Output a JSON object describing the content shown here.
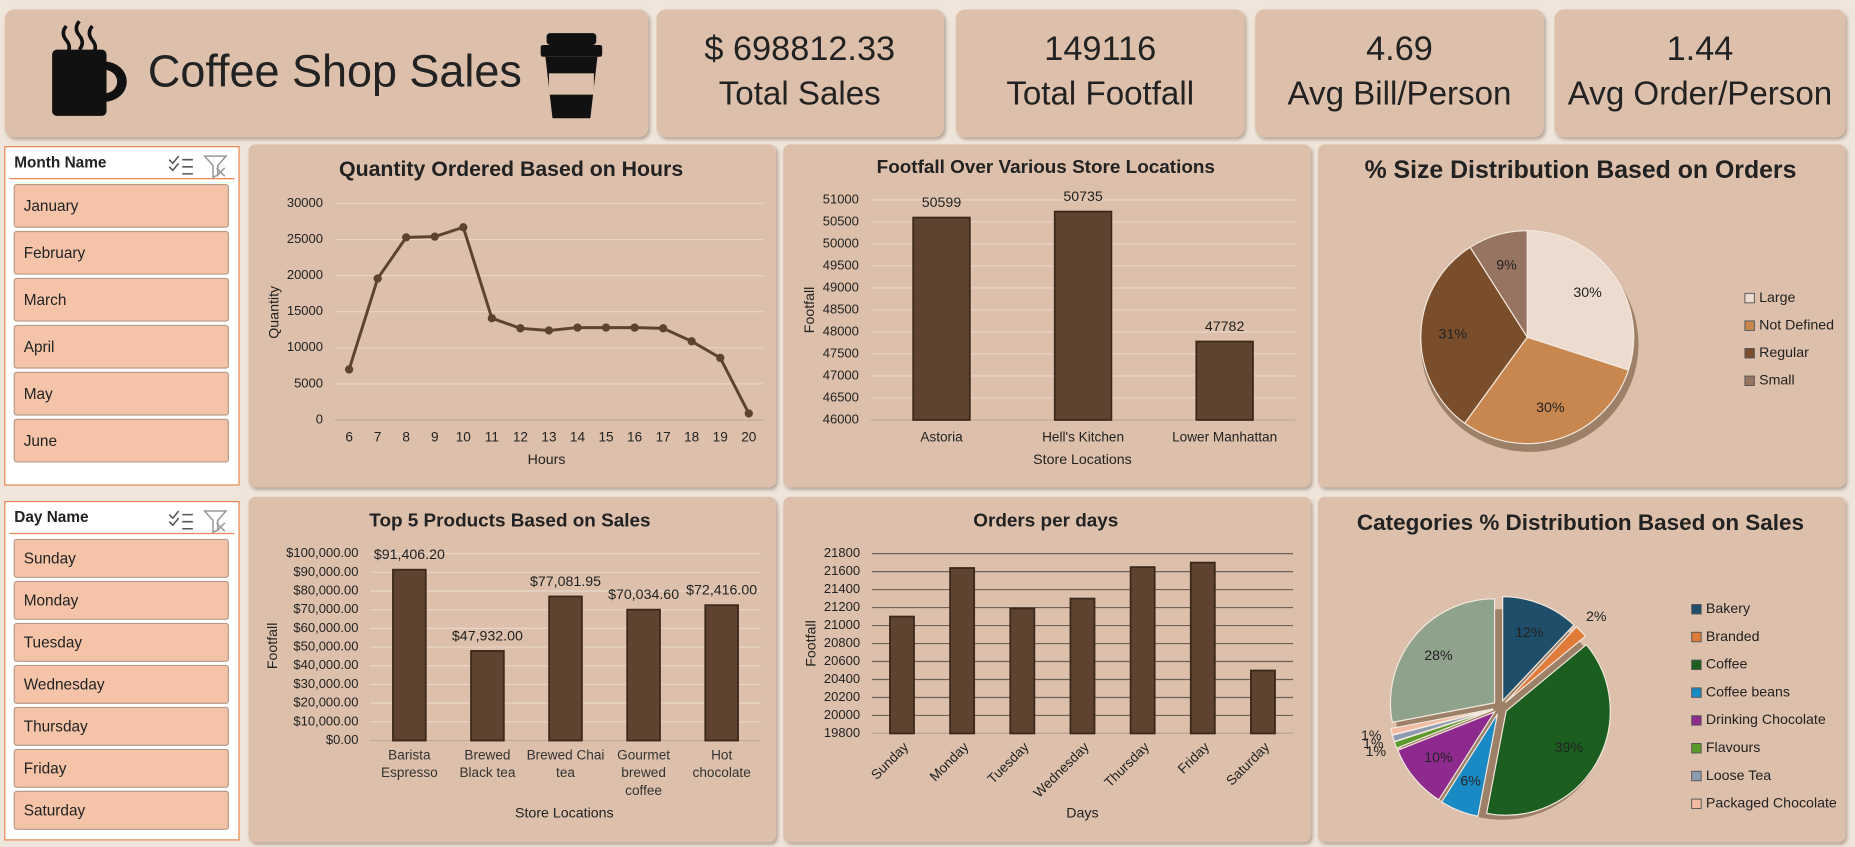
{
  "header": {
    "title": "Coffee Shop Sales"
  },
  "kpis": [
    {
      "value": "$ 698812.33",
      "label": "Total Sales"
    },
    {
      "value": "149116",
      "label": "Total Footfall"
    },
    {
      "value": "4.69",
      "label": "Avg Bill/Person"
    },
    {
      "value": "1.44",
      "label": "Avg Order/Person"
    }
  ],
  "slicers": [
    {
      "title": "Month Name",
      "items": [
        "January",
        "February",
        "March",
        "April",
        "May",
        "June"
      ]
    },
    {
      "title": "Day Name",
      "items": [
        "Sunday",
        "Monday",
        "Tuesday",
        "Wednesday",
        "Thursday",
        "Friday",
        "Saturday"
      ]
    }
  ],
  "chart_data": [
    {
      "type": "line",
      "title": "Quantity Ordered Based on Hours",
      "x_label": "Hours",
      "y_label": "Quantity",
      "categories": [
        "6",
        "7",
        "8",
        "9",
        "10",
        "11",
        "12",
        "13",
        "14",
        "15",
        "16",
        "17",
        "18",
        "19",
        "20"
      ],
      "values": [
        7000,
        19600,
        25300,
        25400,
        26700,
        14100,
        12700,
        12400,
        12800,
        12800,
        12800,
        12700,
        10900,
        8600,
        900
      ],
      "color": "#5e4330",
      "ylim": [
        0,
        30000
      ],
      "yticks": [
        0,
        5000,
        10000,
        15000,
        20000,
        25000,
        30000
      ],
      "grid": true,
      "grid_color": "#e9d6c8"
    },
    {
      "type": "bar",
      "title": "Footfall Over Various Store Locations",
      "x_label": "Store Locations",
      "y_label": "Footfall",
      "categories": [
        "Astoria",
        "Hell's Kitchen",
        "Lower Manhattan"
      ],
      "values": [
        50599,
        50735,
        47782
      ],
      "color": "#5e4330",
      "ylim": [
        46000,
        51000
      ],
      "yticks": [
        46000,
        46500,
        47000,
        47500,
        48000,
        48500,
        49000,
        49500,
        50000,
        50500,
        51000
      ],
      "grid": true,
      "grid_color": "#e9d6c8"
    },
    {
      "type": "pie",
      "title": "% Size Distribution Based on Orders",
      "categories": [
        "Large",
        "Not Defined",
        "Regular",
        "Small"
      ],
      "values": [
        30,
        30,
        31,
        9
      ],
      "value_labels": [
        "30%",
        "30%",
        "31%",
        "9%"
      ],
      "colors": [
        "#ecdccf",
        "#c8874e",
        "#7b4e2b",
        "#977461"
      ],
      "legend": "right"
    },
    {
      "type": "bar",
      "title": "Top 5 Products Based on Sales",
      "x_label": "Store Locations",
      "y_label": "Footfall",
      "categories": [
        "Barista Espresso",
        "Brewed Black tea",
        "Brewed Chai tea",
        "Gourmet brewed coffee",
        "Hot chocolate"
      ],
      "values": [
        91406.2,
        47932.0,
        77081.95,
        70034.6,
        72416.0
      ],
      "value_labels": [
        "$91,406.20",
        "$47,932.00",
        "$77,081.95",
        "$70,034.60",
        "$72,416.00"
      ],
      "color": "#5e4330",
      "ylim": [
        0,
        100000
      ],
      "yticks": [
        {
          "value": 0,
          "label": "$0.00"
        },
        {
          "value": 10000,
          "label": "$10,000.00"
        },
        {
          "value": 20000,
          "label": "$20,000.00"
        },
        {
          "value": 30000,
          "label": "$30,000.00"
        },
        {
          "value": 40000,
          "label": "$40,000.00"
        },
        {
          "value": 50000,
          "label": "$50,000.00"
        },
        {
          "value": 60000,
          "label": "$60,000.00"
        },
        {
          "value": 70000,
          "label": "$70,000.00"
        },
        {
          "value": 80000,
          "label": "$80,000.00"
        },
        {
          "value": 90000,
          "label": "$90,000.00"
        },
        {
          "value": 100000,
          "label": "$100,000.00"
        }
      ],
      "grid": true,
      "grid_color": "#e9d6c8"
    },
    {
      "type": "bar",
      "title": "Orders per days",
      "x_label": "Days",
      "y_label": "Footfall",
      "categories": [
        "Sunday",
        "Monday",
        "Tuesday",
        "Wednesday",
        "Thursday",
        "Friday",
        "Saturday"
      ],
      "values": [
        21100,
        21640,
        21190,
        21300,
        21650,
        21700,
        20500
      ],
      "color": "#5e4330",
      "ylim": [
        19800,
        21800
      ],
      "yticks": [
        19800,
        20000,
        20200,
        20400,
        20600,
        20800,
        21000,
        21200,
        21400,
        21600,
        21800
      ],
      "grid": true,
      "grid_color": "#6e6258"
    },
    {
      "type": "pie",
      "title": "Categories % Distribution Based on Sales",
      "categories": [
        "Bakery",
        "Branded",
        "Coffee",
        "Coffee beans",
        "Drinking Chocolate",
        "Flavours",
        "Loose Tea",
        "Packaged Chocolate",
        null
      ],
      "values": [
        12,
        2,
        39,
        6,
        10,
        1,
        1,
        1,
        28
      ],
      "value_labels": [
        "12%",
        "2%",
        "39%",
        "6%",
        "10%",
        "1%",
        "1%",
        "1%",
        "28%"
      ],
      "colors": [
        "#1f4e6b",
        "#e07b39",
        "#1b5e20",
        "#1a8ac4",
        "#8e2a8e",
        "#5a9a2a",
        "#8d9bb0",
        "#f2bba3",
        "#8fa28c"
      ],
      "legend": "right"
    }
  ]
}
